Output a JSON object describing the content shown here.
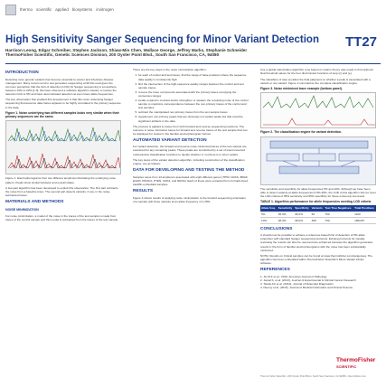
{
  "header": {
    "logo_words": [
      "thermo",
      "scientific",
      "applied",
      "biosystems",
      "invitrogen"
    ],
    "title": "High Sensitivity Sanger Sequencing for Minor Variant Detection",
    "poster_id": "TT27",
    "authors_line1": "Harrison Leong, Edgar Schreiber, Stephen Jackson, Shiaw-Min Chen, Wallace George, Jeffrey Marks, Stephanie Schneider",
    "authors_line2": "ThermoFisher Scientific, Genetic Sciences Division, 200 Oyster Point Blvd., South San Francisco, CA, 94080"
  },
  "col1": {
    "intro_heading": "INTRODUCTION",
    "intro_p1": "Detecting more genetic variants has become essential to cancer and infectious disease management. Many tumors tend to test generates sequencing at 98 this read gives the common perception that the limit of detection (LOD) for Sanger sequencing is somewhere between 15% to 20% [1-3]. We have observed a software algorithm solution to reduce the detection limit to 5% and have demonstrated detection at even lower allele frequencies.",
    "intro_p2": "The key observation that enabled this development is that this noise underlying Sanger sequencing fluorescence data traces appears to be highly correlated to the primary sequence in the data.",
    "fig1_caption": "Figure 1. Noise underlying two different samples looks very similar when their primary sequences are the same.",
    "fig1_note": "Figure 1. Electropherograms from two different amplicons illustrating the underlying noise pattern. Peaks show similar behavior and overall shape.",
    "intro_p3": "A two-part algorithm has been developed to exploit this observation. The first part subtracts the noise from a baseline trace. The second part detects variants, if any, in the noise-subtracted traces.",
    "methods_heading": "MATERIALS AND METHODS",
    "noise_heading": "NOISE MINIMIZATION",
    "methods_p1": "For noise minimization, a model of the noise in the traces of the test sample is made from traces of the control sample and this model is subtracted from the traces of the test sample."
  },
  "col2": {
    "p1": "There are the key steps in the noise minimization algorithm:",
    "steps": [
      "for each of control and test traces, find the range of base positions where the sequence data quality is consistently high",
      "find the intersection of the high-sequence-quality ranges between the control and test sample traces",
      "remove the trace components associated with the primary bases occupying the consensus ranges",
      "locally expand in contrast and/or strengthen or weaken the remaining noise of the control sample to maximize correspondence between the non-primary traces of the control and test samples",
      "subtract the manipulated non-primary traces from the test sample traces",
      "supplement non-primary peaks that are obviously not variant peaks but that could be significant artifacts in the data"
    ],
    "p2": "The process is applied to traces from both forward and reverse sequencing reactions. The outcome is noise minimized traces for forward and reverse traces of the test sample that can be displayed for review in the familiar electropherogram format.",
    "vc_heading": "AUTOMATED VARIANT DETECTION",
    "p3": "For variant detection, the forward and reverse noise-minimized traces of the test sample are examined for any remaining peaks. These peaks are scrutinized by a set of interconnected multi-window classification functions to decide whether or not there is a minor variant.",
    "p4": "The key steps of the variant detection algorithm, including construction of the classification engine, are as follows:",
    "data_heading": "DATA FOR DEVELOPING AND TESTING THE METHOD",
    "p5": "Samples came from 13 amplicons associated with eight different genes (TP53, KRAS, BRAF, EGFR, PIK3CA, PTEN, CDK4, and NRAS). Each of these were extracted from formalin-fixed, paraffin-embedded samples.",
    "results_heading": "RESULTS",
    "p6": "Figure 3 shows results of applying noise minimization to the forward sequencing orientation of a sample with three variants at an allele frequency of 1.25%."
  },
  "col3": {
    "p1": "Use a global optimization algorithm (one based on swarm theory was used) to find optimum final threshold values for the four discriminant functions of step (c) and (e).",
    "p2": "The classifiers of step (e) allow the final judgment on whether a peak is associated with a variant or non-variant. Figure 2 summarizes the complete classification engine.",
    "fig3_caption": "Figure 3. Noise minimized trace example (bottom panel).",
    "fig2_caption": "Figure 2. The classification engine for variant detection.",
    "p3": "The sensitivity and specificity for allele frequencies 5% and 10%. Although we have been able to detect variants at allele frequencies 0.5%-25%, the LOD of this algorithm did not meet the LOD criteria of 95% sensitivity and 95% specificity for these extremely low levels.",
    "table_caption": "TABLE 1. Algorithm performance for allele frequencies meeting LOD criteria",
    "table_headers": [
      "Allele freq.",
      "Sensitivity",
      "Specificity",
      "Variants",
      "Test True Negatives",
      "Total Positives"
    ],
    "table_rows": [
      [
        "5%",
        "95.0%",
        "95.0%",
        "60",
        "750",
        "1100"
      ],
      [
        "10%",
        "96.0%",
        "98.0%",
        "456",
        "750",
        "165/257"
      ]
    ],
    "conclusions_heading": "CONCLUSIONS",
    "p4": "It should now be possible to achieve a reference-based limit of detection of 5% allele proportion with standard Sanger sequencing protocols. Existing protocols for visually reviewing the results can also be used and are enhanced because the algorithm generates results in the form of familiar electropherograms with the noise has been substantially minimized.",
    "p5": "NOTE: Results on clinical samples can be found at www.thermofisher.com/sangerseq. The algorithm has been embedded within ThermoFisher Scientific's Minor Variant Finder software.",
    "refs_heading": "REFERENCES",
    "refs": [
      "1. Jin M-F et al., 2016, American Journal of Pathology",
      "2. Jamal S. et al. (2013), Journal of Experimental & Clinical Cancer Research",
      "3. Tsiatis AC et al. (2010), Journal of Molecular Diagnostics",
      "4. Neemy et al. (2015), Journal of Medical Informatics and Clinical Science"
    ]
  },
  "footer": {
    "brand_line1": "ThermoFisher",
    "brand_line2": "SCIENTIFIC",
    "note": "Thermo Fisher Scientific • 200 Oyster Point Blvd • South San Francisco, CA 94080 • thermofisher.com"
  }
}
